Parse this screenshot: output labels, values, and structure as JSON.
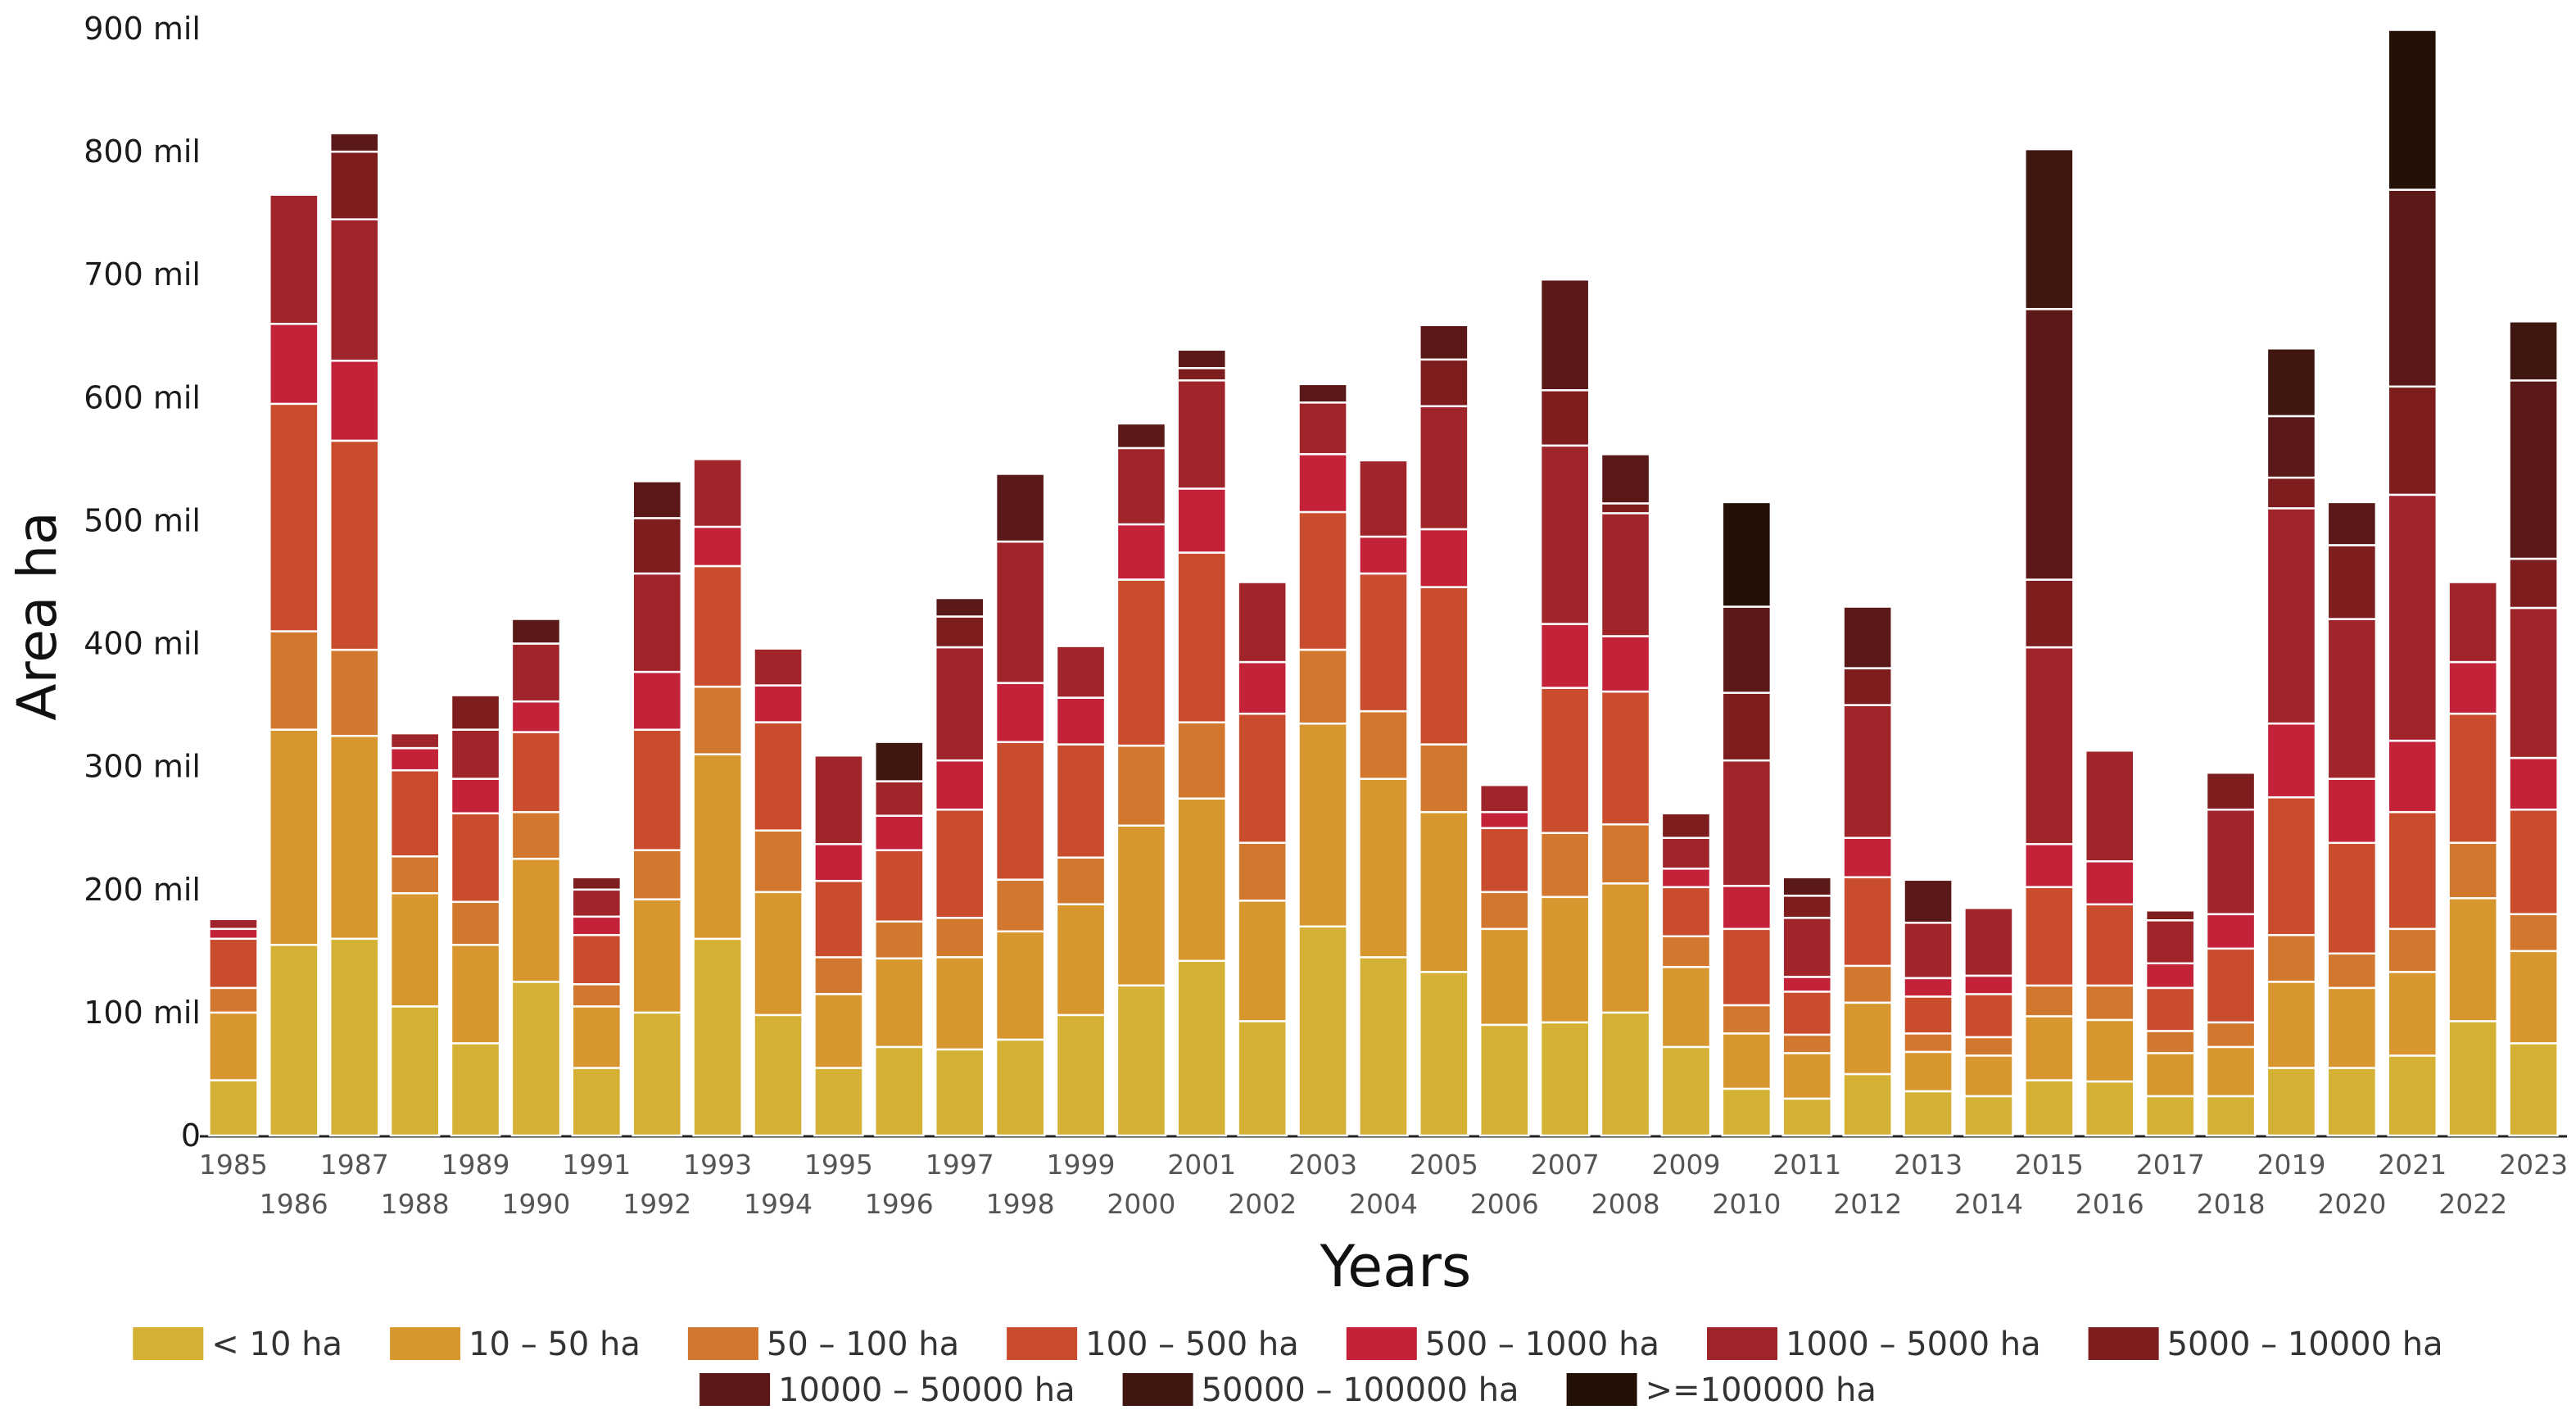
{
  "chart_data": {
    "type": "bar",
    "stacked": true,
    "title": "",
    "xlabel": "Years",
    "ylabel": "Area ha",
    "ylim": [
      0,
      900000
    ],
    "yticks": [
      {
        "value": 0,
        "label": "0"
      },
      {
        "value": 100000,
        "label": "100 mil"
      },
      {
        "value": 200000,
        "label": "200 mil"
      },
      {
        "value": 300000,
        "label": "300 mil"
      },
      {
        "value": 400000,
        "label": "400 mil"
      },
      {
        "value": 500000,
        "label": "500 mil"
      },
      {
        "value": 600000,
        "label": "600 mil"
      },
      {
        "value": 700000,
        "label": "700 mil"
      },
      {
        "value": 800000,
        "label": "800 mil"
      },
      {
        "value": 900000,
        "label": "900 mil"
      }
    ],
    "categories": [
      "1985",
      "1986",
      "1987",
      "1988",
      "1989",
      "1990",
      "1991",
      "1992",
      "1993",
      "1994",
      "1995",
      "1996",
      "1997",
      "1998",
      "1999",
      "2000",
      "2001",
      "2002",
      "2003",
      "2004",
      "2005",
      "2006",
      "2007",
      "2008",
      "2009",
      "2010",
      "2011",
      "2012",
      "2013",
      "2014",
      "2015",
      "2016",
      "2017",
      "2018",
      "2019",
      "2020",
      "2021",
      "2022",
      "2023"
    ],
    "legend_position": "bottom",
    "series": [
      {
        "name": "< 10 ha",
        "color": "#d4b034",
        "values": [
          45000,
          155000,
          160000,
          105000,
          75000,
          125000,
          55000,
          100000,
          160000,
          98000,
          55000,
          72000,
          70000,
          78000,
          98000,
          122000,
          142000,
          93000,
          170000,
          145000,
          133000,
          90000,
          92000,
          100000,
          72000,
          38000,
          30000,
          50000,
          36000,
          32000,
          45000,
          44000,
          32000,
          32000,
          55000,
          55000,
          65000,
          93000,
          75000
        ]
      },
      {
        "name": "10 – 50 ha",
        "color": "#d8962e",
        "values": [
          55000,
          175000,
          165000,
          92000,
          80000,
          100000,
          50000,
          92000,
          150000,
          100000,
          60000,
          72000,
          75000,
          88000,
          90000,
          130000,
          132000,
          98000,
          165000,
          145000,
          130000,
          78000,
          102000,
          105000,
          65000,
          45000,
          37000,
          58000,
          32000,
          33000,
          52000,
          50000,
          35000,
          40000,
          70000,
          65000,
          68000,
          100000,
          75000
        ]
      },
      {
        "name": "50 – 100 ha",
        "color": "#d2782e",
        "values": [
          20000,
          80000,
          70000,
          30000,
          35000,
          38000,
          18000,
          40000,
          55000,
          50000,
          30000,
          30000,
          32000,
          42000,
          38000,
          65000,
          62000,
          47000,
          60000,
          55000,
          55000,
          30000,
          52000,
          48000,
          25000,
          23000,
          15000,
          30000,
          15000,
          15000,
          25000,
          28000,
          18000,
          20000,
          38000,
          28000,
          35000,
          45000,
          30000
        ]
      },
      {
        "name": "100 – 500 ha",
        "color": "#c94c2c",
        "values": [
          40000,
          185000,
          170000,
          70000,
          72000,
          65000,
          40000,
          98000,
          98000,
          88000,
          62000,
          58000,
          88000,
          112000,
          92000,
          135000,
          138000,
          105000,
          112000,
          112000,
          128000,
          52000,
          118000,
          108000,
          40000,
          62000,
          35000,
          72000,
          30000,
          35000,
          80000,
          66000,
          35000,
          60000,
          112000,
          90000,
          95000,
          105000,
          85000
        ]
      },
      {
        "name": "500 – 1000 ha",
        "color": "#c42238",
        "values": [
          8000,
          65000,
          65000,
          18000,
          28000,
          25000,
          15000,
          47000,
          32000,
          30000,
          30000,
          28000,
          40000,
          48000,
          38000,
          45000,
          52000,
          42000,
          47000,
          30000,
          47000,
          13000,
          52000,
          45000,
          15000,
          35000,
          12000,
          32000,
          15000,
          15000,
          35000,
          35000,
          20000,
          28000,
          60000,
          52000,
          58000,
          42000,
          42000
        ]
      },
      {
        "name": "1000 – 5000 ha",
        "color": "#a0252b",
        "values": [
          8000,
          105000,
          115000,
          12000,
          40000,
          47000,
          22000,
          80000,
          55000,
          30000,
          72000,
          28000,
          92000,
          115000,
          42000,
          62000,
          88000,
          65000,
          42000,
          62000,
          100000,
          22000,
          145000,
          100000,
          25000,
          102000,
          48000,
          108000,
          45000,
          55000,
          160000,
          90000,
          35000,
          85000,
          175000,
          130000,
          200000,
          65000,
          122000
        ]
      },
      {
        "name": "5000 – 10000 ha",
        "color": "#7d1d1d",
        "values": [
          0,
          0,
          55000,
          0,
          28000,
          0,
          10000,
          45000,
          0,
          0,
          0,
          0,
          25000,
          0,
          0,
          0,
          10000,
          0,
          0,
          0,
          38000,
          0,
          45000,
          8000,
          20000,
          55000,
          18000,
          30000,
          0,
          0,
          55000,
          0,
          8000,
          30000,
          25000,
          60000,
          88000,
          0,
          40000
        ]
      },
      {
        "name": "10000 – 50000 ha",
        "color": "#5a1918",
        "values": [
          0,
          0,
          15000,
          0,
          0,
          20000,
          0,
          30000,
          0,
          0,
          0,
          0,
          15000,
          55000,
          0,
          20000,
          15000,
          0,
          15000,
          0,
          28000,
          0,
          90000,
          40000,
          0,
          70000,
          15000,
          50000,
          35000,
          0,
          220000,
          0,
          0,
          0,
          50000,
          35000,
          160000,
          0,
          145000
        ]
      },
      {
        "name": "50000 – 100000 ha",
        "color": "#3f1710",
        "values": [
          0,
          0,
          0,
          0,
          0,
          0,
          0,
          0,
          0,
          0,
          0,
          32000,
          0,
          0,
          0,
          0,
          0,
          0,
          0,
          0,
          0,
          0,
          0,
          0,
          0,
          0,
          0,
          0,
          0,
          0,
          130000,
          0,
          0,
          0,
          55000,
          0,
          0,
          0,
          48000
        ]
      },
      {
        "name": ">=100000 ha",
        "color": "#241106",
        "values": [
          0,
          0,
          0,
          0,
          0,
          0,
          0,
          0,
          0,
          0,
          0,
          0,
          0,
          0,
          0,
          0,
          0,
          0,
          0,
          0,
          0,
          0,
          0,
          0,
          0,
          85000,
          0,
          0,
          0,
          0,
          0,
          0,
          0,
          0,
          0,
          0,
          130000,
          0,
          0
        ]
      }
    ]
  }
}
